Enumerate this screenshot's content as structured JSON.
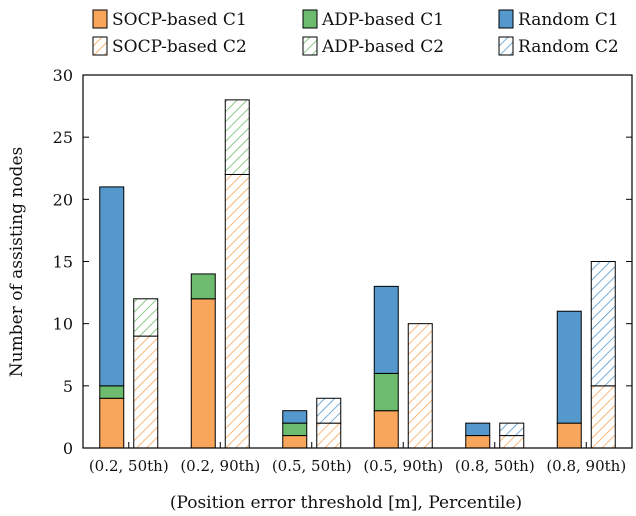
{
  "chart_data": {
    "type": "bar",
    "stacked": true,
    "categories": [
      "(0.2, 50th)",
      "(0.2, 90th)",
      "(0.5, 50th)",
      "(0.5, 90th)",
      "(0.8, 50th)",
      "(0.8, 90th)"
    ],
    "groups": [
      {
        "name": "C1",
        "fill": "solid",
        "series": [
          {
            "name": "SOCP-based C1",
            "values": [
              4,
              12,
              1,
              3,
              1,
              2
            ]
          },
          {
            "name": "ADP-based C1",
            "values": [
              1,
              2,
              1,
              3,
              0,
              0
            ]
          },
          {
            "name": "Random C1",
            "values": [
              16,
              0,
              1,
              7,
              1,
              9
            ]
          }
        ]
      },
      {
        "name": "C2",
        "fill": "hatched",
        "series": [
          {
            "name": "SOCP-based C2",
            "values": [
              9,
              22,
              2,
              10,
              1,
              5
            ]
          },
          {
            "name": "ADP-based C2",
            "values": [
              3,
              6,
              0,
              0,
              0,
              0
            ]
          },
          {
            "name": "Random C2",
            "values": [
              0,
              0,
              2,
              0,
              1,
              10
            ]
          }
        ]
      }
    ],
    "xlabel": "(Position error threshold [m], Percentile)",
    "ylabel": "Number of assisting nodes",
    "ylim": [
      0,
      30
    ],
    "yticks": [
      0,
      5,
      10,
      15,
      20,
      25,
      30
    ],
    "grid": false,
    "legend": {
      "placement": "top",
      "entries": [
        "SOCP-based C1",
        "ADP-based C1",
        "Random C1",
        "SOCP-based C2",
        "ADP-based C2",
        "Random C2"
      ]
    },
    "colors": {
      "SOCP": "#f8a65b",
      "ADP": "#6dbb6e",
      "Random": "#5599cc"
    }
  }
}
